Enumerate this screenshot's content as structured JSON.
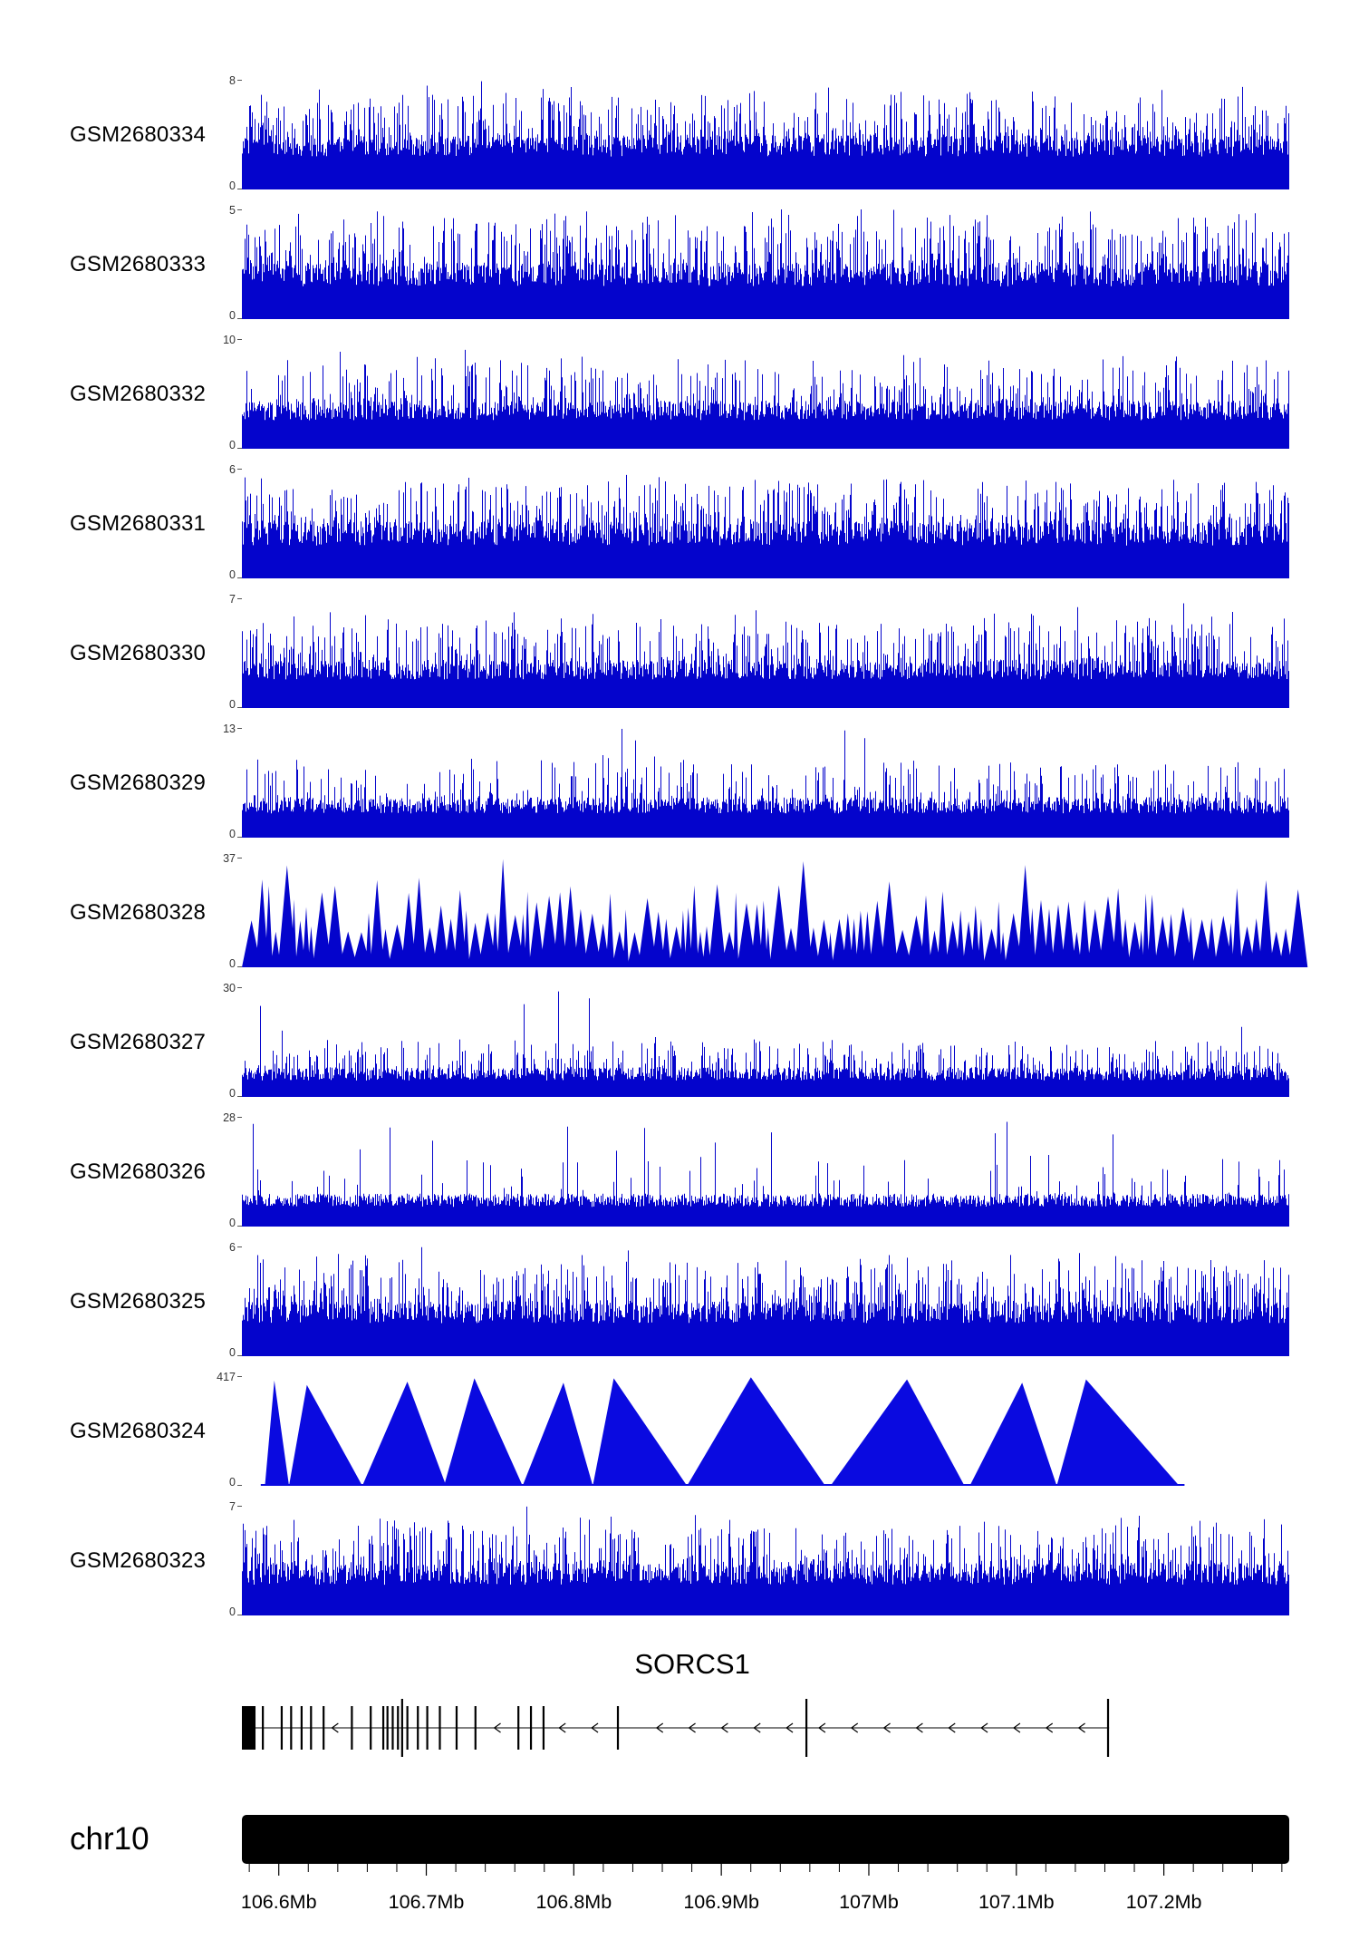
{
  "page": {
    "background": "#ffffff"
  },
  "chart_data": {
    "type": "area",
    "description": "Genome browser read-coverage tracks across the SORCS1 locus on chromosome 10",
    "region": {
      "chromosome": "chr10",
      "start_mb": 106.575,
      "end_mb": 107.285,
      "unit": "Mb"
    },
    "colors": {
      "signal": "#0404CC",
      "peak_fill": "#0A0AE0",
      "gene": "#000000",
      "ideogram": "#000000",
      "axis_text": "#000000",
      "ylabel_text": "#333333"
    },
    "tracks": [
      {
        "name": "GSM2680334",
        "ymin": 0,
        "ymax": 8,
        "style": "dense",
        "seed": 101,
        "params": {
          "base": 0.3,
          "jitter": 0.2,
          "mid_p": 0.45,
          "mid_h": 0.45,
          "tall_p": 0.01,
          "tall_min": 0.72
        }
      },
      {
        "name": "GSM2680333",
        "ymin": 0,
        "ymax": 5,
        "style": "dense",
        "seed": 102,
        "params": {
          "base": 0.3,
          "jitter": 0.22,
          "mid_p": 0.5,
          "mid_h": 0.5,
          "tall_p": 0.008,
          "tall_min": 0.72
        }
      },
      {
        "name": "GSM2680332",
        "ymin": 0,
        "ymax": 10,
        "style": "dense",
        "seed": 103,
        "params": {
          "base": 0.26,
          "jitter": 0.18,
          "mid_p": 0.35,
          "mid_h": 0.45,
          "tall_p": 0.006,
          "tall_min": 0.7
        }
      },
      {
        "name": "GSM2680331",
        "ymin": 0,
        "ymax": 6,
        "style": "dense",
        "seed": 104,
        "params": {
          "base": 0.3,
          "jitter": 0.22,
          "mid_p": 0.5,
          "mid_h": 0.45,
          "tall_p": 0.01,
          "tall_min": 0.72
        }
      },
      {
        "name": "GSM2680330",
        "ymin": 0,
        "ymax": 7,
        "style": "dense",
        "seed": 105,
        "params": {
          "base": 0.26,
          "jitter": 0.18,
          "mid_p": 0.4,
          "mid_h": 0.45,
          "tall_p": 0.008,
          "tall_min": 0.7
        }
      },
      {
        "name": "GSM2680329",
        "ymin": 0,
        "ymax": 13,
        "style": "dense",
        "seed": 106,
        "params": {
          "base": 0.22,
          "jitter": 0.15,
          "mid_p": 0.28,
          "mid_h": 0.4,
          "tall_p": 0.006,
          "tall_min": 0.68
        }
      },
      {
        "name": "GSM2680328",
        "ymin": 0,
        "ymax": 37,
        "style": "triangles",
        "seed": 107,
        "params": {
          "wmin": 6,
          "wmax": 22,
          "hbase": 0.32,
          "hvar": 0.5,
          "tall_p": 0.07,
          "step": 0.72
        }
      },
      {
        "name": "GSM2680327",
        "ymin": 0,
        "ymax": 30,
        "style": "dense",
        "seed": 108,
        "params": {
          "base": 0.15,
          "jitter": 0.12,
          "mid_p": 0.35,
          "mid_h": 0.28,
          "tall_p": 0.005,
          "tall_min": 0.55
        }
      },
      {
        "name": "GSM2680326",
        "ymin": 0,
        "ymax": 28,
        "style": "dense",
        "seed": 109,
        "params": {
          "base": 0.18,
          "jitter": 0.12,
          "mid_p": 0.07,
          "mid_h": 0.4,
          "tall_p": 0.009,
          "tall_min": 0.5
        }
      },
      {
        "name": "GSM2680325",
        "ymin": 0,
        "ymax": 6,
        "style": "dense",
        "seed": 110,
        "params": {
          "base": 0.3,
          "jitter": 0.2,
          "mid_p": 0.5,
          "mid_h": 0.45,
          "tall_p": 0.005,
          "tall_min": 0.75
        }
      },
      {
        "name": "GSM2680324",
        "ymin": 0,
        "ymax": 417,
        "style": "peaks",
        "seed": 111,
        "baseline_span": [
          0.018,
          0.9
        ],
        "peaks": [
          {
            "l": 0.022,
            "c": 0.031,
            "r": 0.045,
            "h": 0.96
          },
          {
            "l": 0.045,
            "c": 0.062,
            "r": 0.115,
            "h": 0.92
          },
          {
            "l": 0.115,
            "c": 0.158,
            "r": 0.195,
            "h": 0.95
          },
          {
            "l": 0.193,
            "c": 0.222,
            "r": 0.268,
            "h": 0.98
          },
          {
            "l": 0.268,
            "c": 0.307,
            "r": 0.335,
            "h": 0.94
          },
          {
            "l": 0.335,
            "c": 0.355,
            "r": 0.425,
            "h": 0.98
          },
          {
            "l": 0.425,
            "c": 0.486,
            "r": 0.557,
            "h": 0.99
          },
          {
            "l": 0.562,
            "c": 0.635,
            "r": 0.69,
            "h": 0.97
          },
          {
            "l": 0.695,
            "c": 0.745,
            "r": 0.778,
            "h": 0.94
          },
          {
            "l": 0.778,
            "c": 0.806,
            "r": 0.895,
            "h": 0.97
          }
        ]
      },
      {
        "name": "GSM2680323",
        "ymin": 0,
        "ymax": 7,
        "style": "dense",
        "seed": 112,
        "params": {
          "base": 0.28,
          "jitter": 0.2,
          "mid_p": 0.4,
          "mid_h": 0.45,
          "tall_p": 0.008,
          "tall_min": 0.7
        }
      }
    ],
    "gene_track": {
      "title": "SORCS1",
      "strand": "-",
      "line_span": [
        0.006,
        0.828
      ],
      "utr_box": {
        "x0": 0.0,
        "x1": 0.013
      },
      "arrow_step": 0.031,
      "exons": [
        {
          "x": 0.02
        },
        {
          "x": 0.038
        },
        {
          "x": 0.047
        },
        {
          "x": 0.057
        },
        {
          "x": 0.066
        },
        {
          "x": 0.078
        },
        {
          "x": 0.105
        },
        {
          "x": 0.123
        },
        {
          "x": 0.135
        },
        {
          "x": 0.139
        },
        {
          "x": 0.144
        },
        {
          "x": 0.149
        },
        {
          "x": 0.153,
          "tall": true
        },
        {
          "x": 0.158
        },
        {
          "x": 0.168
        },
        {
          "x": 0.177
        },
        {
          "x": 0.189
        },
        {
          "x": 0.205
        },
        {
          "x": 0.223
        },
        {
          "x": 0.264
        },
        {
          "x": 0.276
        },
        {
          "x": 0.288
        },
        {
          "x": 0.359
        },
        {
          "x": 0.539,
          "tall": true
        },
        {
          "x": 0.827,
          "tall": true
        }
      ]
    },
    "axis": {
      "label": "chr10",
      "start_mb": 106.575,
      "end_mb": 107.285,
      "minor_tick_step_mb": 0.02,
      "ticks": [
        {
          "mb": 106.6,
          "label": "106.6Mb"
        },
        {
          "mb": 106.7,
          "label": "106.7Mb"
        },
        {
          "mb": 106.8,
          "label": "106.8Mb"
        },
        {
          "mb": 106.9,
          "label": "106.9Mb"
        },
        {
          "mb": 107.0,
          "label": "107Mb"
        },
        {
          "mb": 107.1,
          "label": "107.1Mb"
        },
        {
          "mb": 107.2,
          "label": "107.2Mb"
        }
      ]
    }
  }
}
